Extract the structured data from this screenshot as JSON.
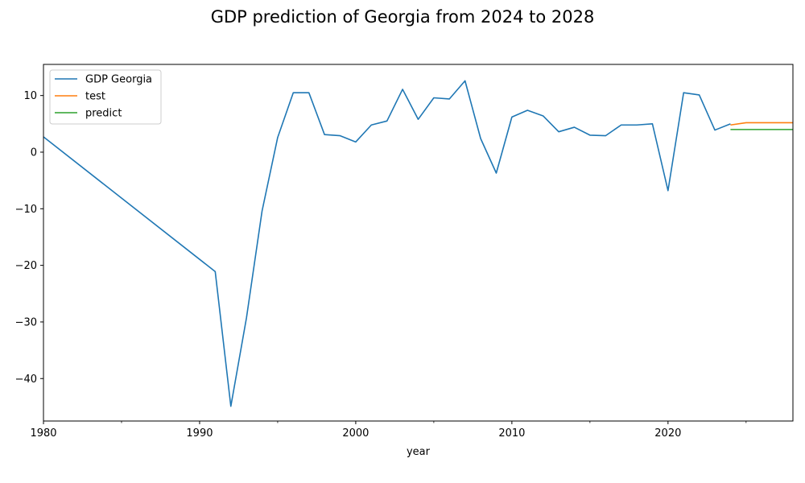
{
  "chart_data": {
    "type": "line",
    "title": "GDP prediction of Georgia from 2024 to 2028",
    "xlabel": "year",
    "ylabel": "",
    "xlim": [
      1980,
      2028
    ],
    "ylim": [
      -47.5,
      15.5
    ],
    "x_major_ticks": [
      1980,
      1990,
      2000,
      2010,
      2020
    ],
    "x_minor_ticks": [
      1985,
      1995,
      2005,
      2015,
      2025
    ],
    "y_ticks": [
      10,
      0,
      -10,
      -20,
      -30,
      -40
    ],
    "x_tick_labels": [
      "1980",
      "1990",
      "2000",
      "2010",
      "2020"
    ],
    "y_tick_labels": [
      "10",
      "0",
      "−10",
      "−20",
      "−30",
      "−40"
    ],
    "grid": false,
    "legend_position": "upper-left",
    "series": [
      {
        "name": "GDP Georgia",
        "color": "#1f77b4",
        "points": [
          [
            1980,
            2.7
          ],
          [
            1991,
            -21.1
          ],
          [
            1992,
            -44.9
          ],
          [
            1993,
            -29.3
          ],
          [
            1994,
            -10.4
          ],
          [
            1995,
            2.6
          ],
          [
            1996,
            10.5
          ],
          [
            1997,
            10.5
          ],
          [
            1998,
            3.1
          ],
          [
            1999,
            2.9
          ],
          [
            2000,
            1.8
          ],
          [
            2001,
            4.8
          ],
          [
            2002,
            5.5
          ],
          [
            2003,
            11.1
          ],
          [
            2004,
            5.8
          ],
          [
            2005,
            9.6
          ],
          [
            2006,
            9.4
          ],
          [
            2007,
            12.6
          ],
          [
            2008,
            2.4
          ],
          [
            2009,
            -3.7
          ],
          [
            2010,
            6.2
          ],
          [
            2011,
            7.4
          ],
          [
            2012,
            6.4
          ],
          [
            2013,
            3.6
          ],
          [
            2014,
            4.4
          ],
          [
            2015,
            3.0
          ],
          [
            2016,
            2.9
          ],
          [
            2017,
            4.8
          ],
          [
            2018,
            4.8
          ],
          [
            2019,
            5.0
          ],
          [
            2020,
            -6.8
          ],
          [
            2021,
            10.5
          ],
          [
            2022,
            10.1
          ],
          [
            2023,
            3.9
          ],
          [
            2024,
            5.0
          ]
        ]
      },
      {
        "name": "test",
        "color": "#ff7f0e",
        "points": [
          [
            2024,
            4.8
          ],
          [
            2025,
            5.2
          ],
          [
            2026,
            5.2
          ],
          [
            2027,
            5.2
          ],
          [
            2028,
            5.2
          ]
        ]
      },
      {
        "name": "predict",
        "color": "#2ca02c",
        "points": [
          [
            2024,
            4.0
          ],
          [
            2025,
            4.0
          ],
          [
            2026,
            4.0
          ],
          [
            2027,
            4.0
          ],
          [
            2028,
            4.0
          ]
        ]
      }
    ]
  }
}
